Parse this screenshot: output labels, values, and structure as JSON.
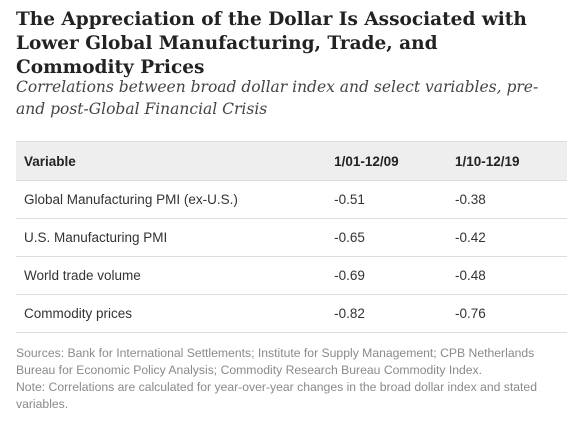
{
  "title": "The Appreciation of the Dollar Is Associated with Lower Global Manufacturing, Trade, and Commodity Prices",
  "subtitle": "Correlations between broad dollar index and select variables, pre- and post-Global Financial Crisis",
  "table": {
    "headers": [
      "Variable",
      "1/01-12/09",
      "1/10-12/19"
    ],
    "rows": [
      [
        "Global Manufacturing PMI (ex-U.S.)",
        "-0.51",
        "-0.38"
      ],
      [
        "U.S. Manufacturing PMI",
        "-0.65",
        "-0.42"
      ],
      [
        "World trade volume",
        "-0.69",
        "-0.48"
      ],
      [
        "Commodity prices",
        "-0.82",
        "-0.76"
      ]
    ]
  },
  "sources": "Sources: Bank for International Settlements; Institute for Supply Management; CPB Netherlands Bureau for Economic Policy Analysis; Commodity Research Bureau Commodity Index.",
  "note": "Note: Correlations are calculated for year-over-year changes in the broad dollar index and stated variables."
}
